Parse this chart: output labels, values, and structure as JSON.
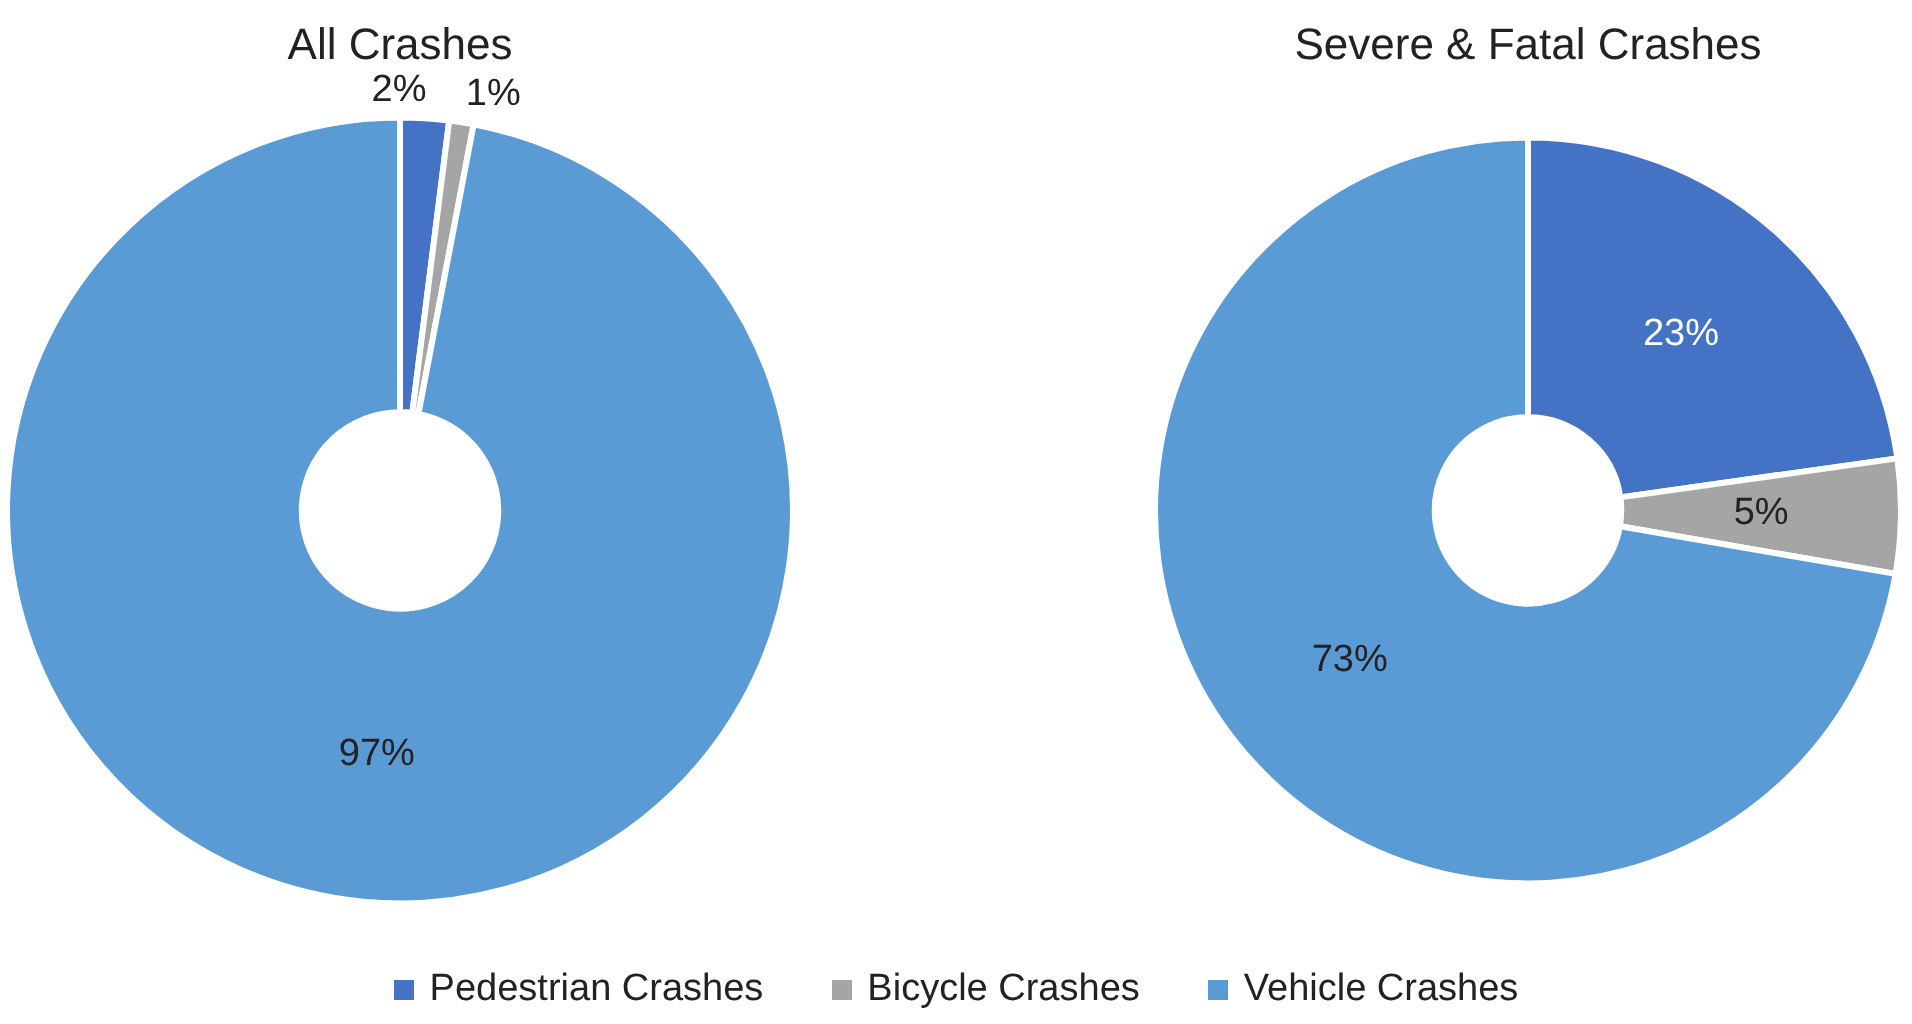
{
  "chart_data": [
    {
      "type": "donut",
      "title": "All Crashes",
      "categories": [
        "Pedestrian Crashes",
        "Bicycle Crashes",
        "Vehicle Crashes"
      ],
      "values": [
        2,
        1,
        97
      ],
      "colors": [
        "#4472c4",
        "#a5a5a5",
        "#5b9bd5"
      ],
      "data_labels": true,
      "value_labels": [
        "2%",
        "1%",
        "97%"
      ],
      "legend": "bottom"
    },
    {
      "type": "donut",
      "title": "Severe & Fatal Crashes",
      "categories": [
        null,
        null,
        null
      ],
      "values": [
        23,
        5,
        73
      ],
      "colors": [
        "#4472c4",
        "#a5a5a5",
        "#5b9bd5"
      ],
      "data_labels": true,
      "value_labels": [
        "23%",
        "5%",
        "73%"
      ]
    }
  ]
}
